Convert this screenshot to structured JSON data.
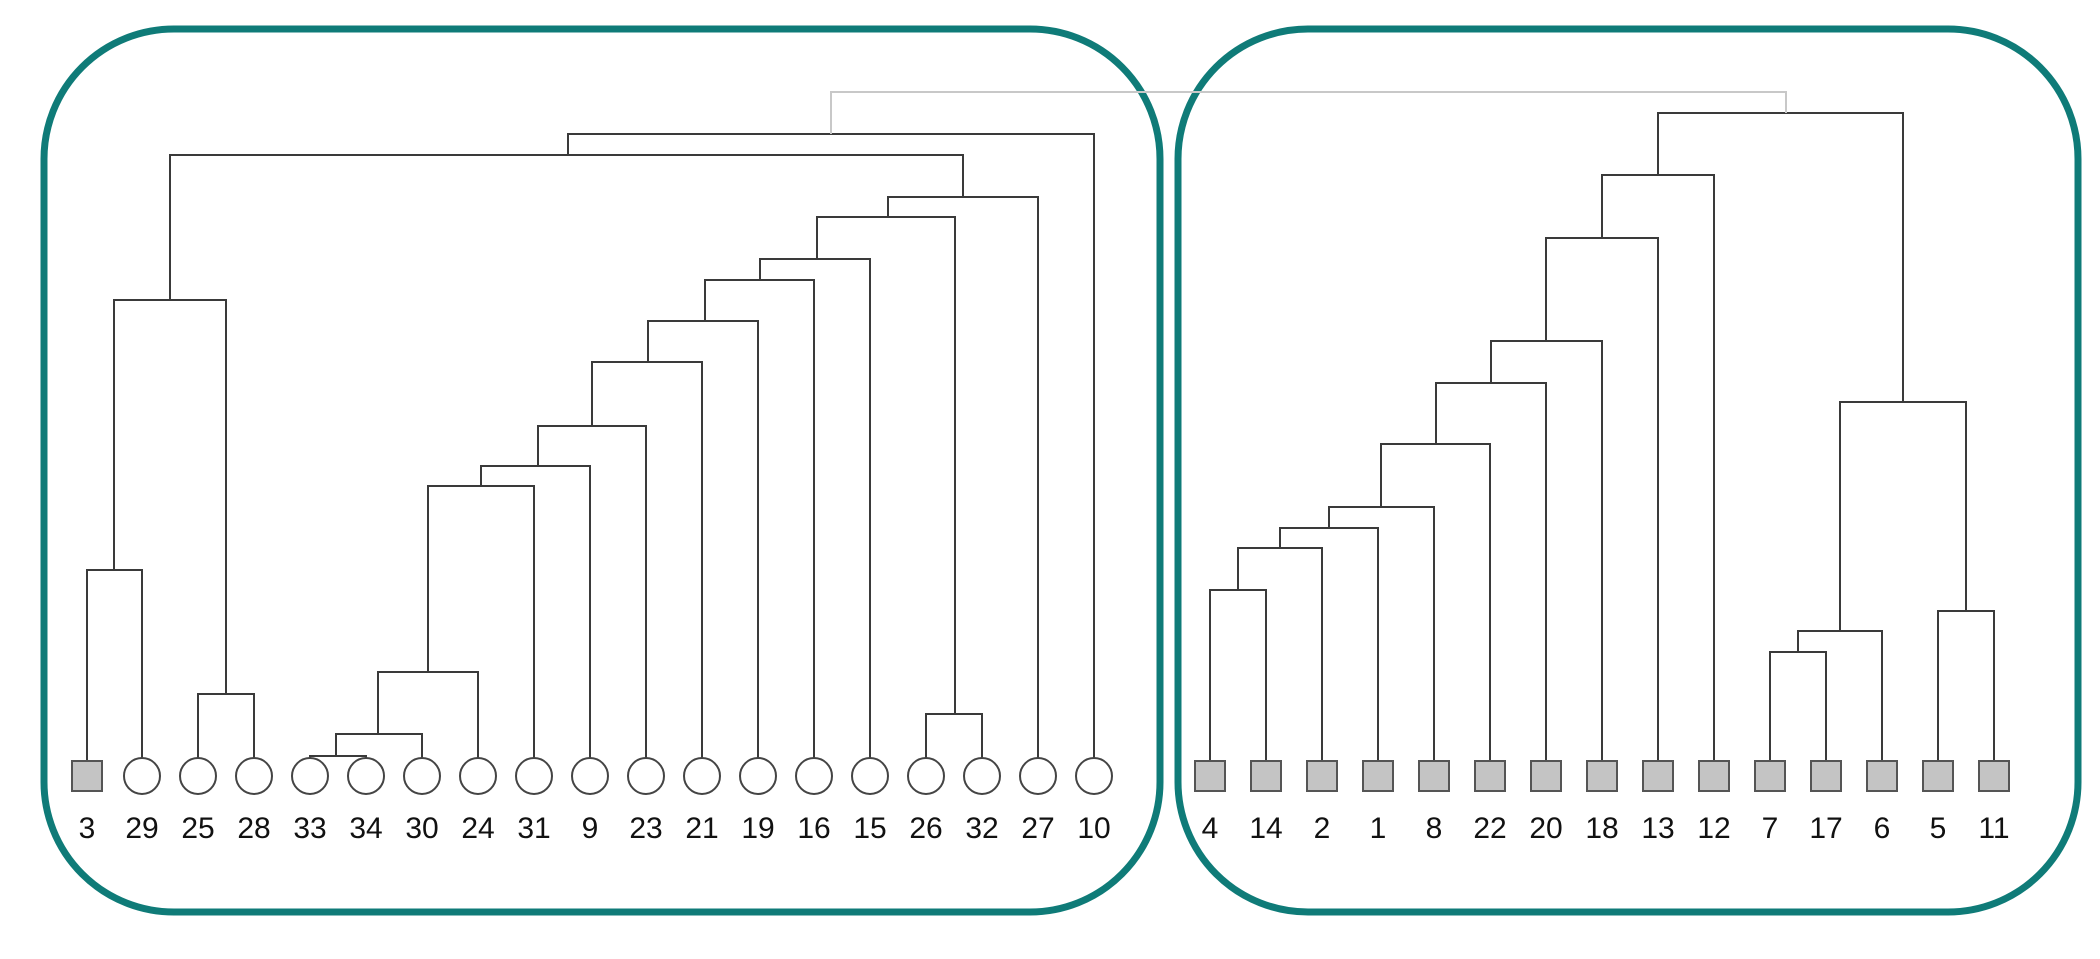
{
  "colors": {
    "panel_border": "#0f7b78",
    "branch": "#3a3a3a",
    "top_link": "#c8c8c8",
    "square_fill": "#c4c4c4",
    "circle_fill": "#ffffff"
  },
  "leaves": [
    {
      "id": "3",
      "shape": "square"
    },
    {
      "id": "29",
      "shape": "circle"
    },
    {
      "id": "25",
      "shape": "circle"
    },
    {
      "id": "28",
      "shape": "circle"
    },
    {
      "id": "33",
      "shape": "circle"
    },
    {
      "id": "34",
      "shape": "circle"
    },
    {
      "id": "30",
      "shape": "circle"
    },
    {
      "id": "24",
      "shape": "circle"
    },
    {
      "id": "31",
      "shape": "circle"
    },
    {
      "id": "9",
      "shape": "circle"
    },
    {
      "id": "23",
      "shape": "circle"
    },
    {
      "id": "21",
      "shape": "circle"
    },
    {
      "id": "19",
      "shape": "circle"
    },
    {
      "id": "16",
      "shape": "circle"
    },
    {
      "id": "15",
      "shape": "circle"
    },
    {
      "id": "26",
      "shape": "circle"
    },
    {
      "id": "32",
      "shape": "circle"
    },
    {
      "id": "27",
      "shape": "circle"
    },
    {
      "id": "10",
      "shape": "circle"
    },
    {
      "id": "4",
      "shape": "square"
    },
    {
      "id": "14",
      "shape": "square"
    },
    {
      "id": "2",
      "shape": "square"
    },
    {
      "id": "1",
      "shape": "square"
    },
    {
      "id": "8",
      "shape": "square"
    },
    {
      "id": "22",
      "shape": "square"
    },
    {
      "id": "20",
      "shape": "square"
    },
    {
      "id": "18",
      "shape": "square"
    },
    {
      "id": "13",
      "shape": "square"
    },
    {
      "id": "12",
      "shape": "square"
    },
    {
      "id": "7",
      "shape": "square"
    },
    {
      "id": "17",
      "shape": "square"
    },
    {
      "id": "6",
      "shape": "square"
    },
    {
      "id": "5",
      "shape": "square"
    },
    {
      "id": "11",
      "shape": "square"
    }
  ]
}
